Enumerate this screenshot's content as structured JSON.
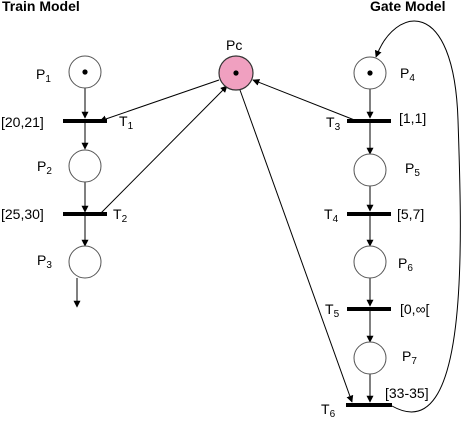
{
  "titles": {
    "train": "Train Model",
    "gate": "Gate Model"
  },
  "shared_place": {
    "label": "Pc",
    "tokens": 1
  },
  "train": {
    "places": [
      {
        "name": "P",
        "sub": "1",
        "tokens": 1
      },
      {
        "name": "P",
        "sub": "2",
        "tokens": 0
      },
      {
        "name": "P",
        "sub": "3",
        "tokens": 0
      }
    ],
    "transitions": [
      {
        "name": "T",
        "sub": "1",
        "interval": "[20,21]"
      },
      {
        "name": "T",
        "sub": "2",
        "interval": "[25,30]"
      }
    ]
  },
  "gate": {
    "places": [
      {
        "name": "P",
        "sub": "4",
        "tokens": 1
      },
      {
        "name": "P",
        "sub": "5",
        "tokens": 0
      },
      {
        "name": "P",
        "sub": "6",
        "tokens": 0
      },
      {
        "name": "P",
        "sub": "7",
        "tokens": 0
      }
    ],
    "transitions": [
      {
        "name": "T",
        "sub": "3",
        "interval": "[1,1]"
      },
      {
        "name": "T",
        "sub": "4",
        "interval": "[5,7]"
      },
      {
        "name": "T",
        "sub": "5",
        "interval": "[0,∞["
      },
      {
        "name": "T",
        "sub": "6",
        "interval": "[33-35]"
      }
    ]
  },
  "colors": {
    "shared_place_fill": "#f0a0c0",
    "ink": "#000000"
  }
}
